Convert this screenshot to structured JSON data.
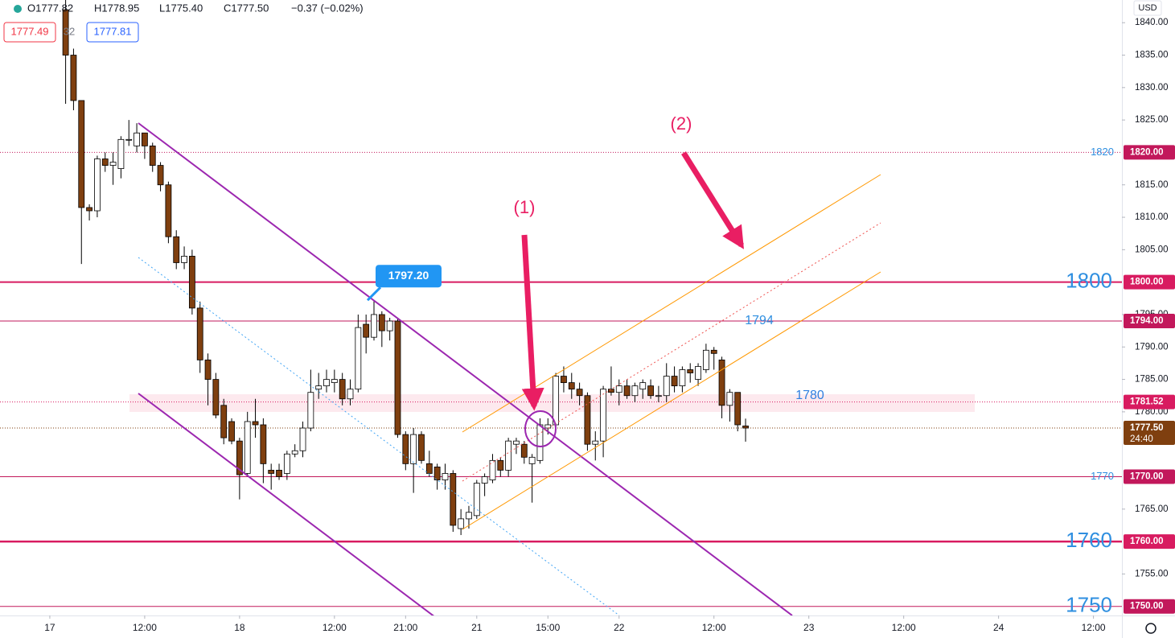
{
  "chart_data": {
    "type": "candlestick",
    "header": [
      "O1777.82",
      "H1778.95",
      "L1775.40",
      "C1777.50",
      "−0.37 (−0.02%)"
    ],
    "header_boxes": [
      "1777.49",
      "32",
      "1777.81"
    ],
    "currency": "USD",
    "xlim": [
      -6.3,
      135.6
    ],
    "ylim": [
      1748.6,
      1843.5
    ],
    "grid": false,
    "up_color": "#ffffff",
    "down_color": "#7f3f0f",
    "wick_color": "#000000",
    "xticks": [
      {
        "value": 0,
        "label": "17"
      },
      {
        "value": 12,
        "label": "12:00"
      },
      {
        "value": 24,
        "label": "18"
      },
      {
        "value": 36,
        "label": "12:00"
      },
      {
        "value": 45,
        "label": "21:00"
      },
      {
        "value": 54,
        "label": "21"
      },
      {
        "value": 63,
        "label": "15:00"
      },
      {
        "value": 72,
        "label": "22"
      },
      {
        "value": 84,
        "label": "12:00"
      },
      {
        "value": 96,
        "label": "23"
      },
      {
        "value": 108,
        "label": "12:00"
      },
      {
        "value": 120,
        "label": "24"
      },
      {
        "value": 132,
        "label": "12:00"
      }
    ],
    "yticks": [
      {
        "value": 1840,
        "label": "1840.00"
      },
      {
        "value": 1835,
        "label": "1835.00"
      },
      {
        "value": 1830,
        "label": "1830.00"
      },
      {
        "value": 1825,
        "label": "1825.00"
      },
      {
        "value": 1815,
        "label": "1815.00"
      },
      {
        "value": 1810,
        "label": "1810.00"
      },
      {
        "value": 1805,
        "label": "1805.00"
      },
      {
        "value": 1795,
        "label": "1795.00"
      },
      {
        "value": 1790,
        "label": "1790.00"
      },
      {
        "value": 1785,
        "label": "1785.00"
      },
      {
        "value": 1780,
        "label": "1780.00"
      },
      {
        "value": 1765,
        "label": "1765.00"
      },
      {
        "value": 1755,
        "label": "1755.00"
      }
    ],
    "x": [
      2,
      3,
      4,
      5,
      6,
      7,
      8,
      9,
      10,
      11,
      12,
      13,
      14,
      15,
      16,
      17,
      18,
      19,
      20,
      21,
      22,
      23,
      24,
      25,
      26,
      27,
      28,
      29,
      30,
      31,
      32,
      33,
      34,
      35,
      36,
      37,
      38,
      39,
      40,
      41,
      42,
      43,
      44,
      45,
      46,
      47,
      48,
      49,
      50,
      51,
      52,
      53,
      54,
      55,
      56,
      57,
      58,
      59,
      60,
      61,
      62,
      63,
      64,
      65,
      66,
      67,
      68,
      69,
      70,
      71,
      72,
      73,
      74,
      75,
      76,
      77,
      78,
      79,
      80,
      81,
      82,
      83,
      84,
      85,
      86,
      87,
      88
    ],
    "open": [
      1842,
      1835,
      1828,
      1811.5,
      1811,
      1819,
      1818,
      1817.5,
      1822,
      1821,
      1823,
      1821,
      1818,
      1815,
      1807,
      1803,
      1804,
      1796,
      1788,
      1785,
      1781,
      1778.5,
      1775.5,
      1770.5,
      1778.5,
      1778,
      1771,
      1771,
      1770.5,
      1773.5,
      1774,
      1777.5,
      1783.5,
      1784,
      1784.5,
      1785,
      1782,
      1783.5,
      1793.5,
      1791.5,
      1795,
      1792.5,
      1794,
      1776.5,
      1772,
      1776.5,
      1772,
      1771.5,
      1769.5,
      1770.5,
      1762,
      1763.5,
      1764,
      1769,
      1769.5,
      1772.5,
      1771,
      1775,
      1775,
      1772,
      1772.5,
      1777.5,
      1778,
      1785.5,
      1784.5,
      1783.5,
      1782.5,
      1775,
      1775.5,
      1783.5,
      1783,
      1784,
      1782.5,
      1783.5,
      1784,
      1782.5,
      1782.5,
      1785.5,
      1784,
      1786.5,
      1785,
      1786.5,
      1789.5,
      1788,
      1781,
      1783,
      1777.82
    ],
    "high": [
      1846,
      1836,
      1828,
      1812,
      1819.5,
      1820,
      1820,
      1822.5,
      1825,
      1824.5,
      1823,
      1821.5,
      1818.5,
      1815.5,
      1808,
      1805.5,
      1805,
      1797,
      1789,
      1786,
      1782,
      1779,
      1776,
      1780,
      1782,
      1779,
      1772,
      1772,
      1774,
      1775,
      1778.5,
      1786.5,
      1786,
      1786.5,
      1786.5,
      1786,
      1785,
      1795,
      1795,
      1797.2,
      1795.5,
      1794.5,
      1794.5,
      1777,
      1777.5,
      1777,
      1774,
      1772,
      1772,
      1771,
      1765,
      1765.5,
      1769.5,
      1770.5,
      1773.5,
      1773,
      1776,
      1776,
      1775.5,
      1773.5,
      1779,
      1779,
      1786,
      1787,
      1786,
      1784.5,
      1783,
      1777,
      1784,
      1787,
      1785,
      1785,
      1784.5,
      1785,
      1785,
      1784,
      1787.5,
      1787,
      1787,
      1787.5,
      1787.5,
      1790.5,
      1790,
      1788.5,
      1783.5,
      1783,
      1778.95
    ],
    "low": [
      1827.5,
      1826.5,
      1802.8,
      1809.5,
      1810,
      1817,
      1815,
      1816,
      1821,
      1820,
      1819,
      1817,
      1814,
      1806,
      1802,
      1802,
      1795,
      1786,
      1781,
      1779,
      1775,
      1775,
      1766.5,
      1770,
      1776,
      1769,
      1768,
      1769.5,
      1769.5,
      1773,
      1773,
      1777,
      1782,
      1783,
      1783,
      1781,
      1781,
      1783,
      1789,
      1791,
      1790,
      1791,
      1776,
      1771,
      1767.5,
      1772,
      1770,
      1768,
      1768,
      1761.5,
      1761,
      1762,
      1763.5,
      1767,
      1769,
      1770,
      1770,
      1773.5,
      1772,
      1766,
      1772,
      1776.5,
      1777.5,
      1783,
      1782,
      1781,
      1774,
      1772.5,
      1773,
      1782.5,
      1781,
      1782,
      1781.5,
      1782,
      1782,
      1781.5,
      1781.5,
      1783,
      1783,
      1784.5,
      1784,
      1786,
      1786.5,
      1779,
      1778.5,
      1777,
      1775.4
    ],
    "close": [
      1835,
      1828,
      1811.5,
      1811,
      1819,
      1818,
      1818.5,
      1822,
      1822,
      1823,
      1821,
      1818,
      1815,
      1807,
      1803,
      1804,
      1796,
      1788,
      1785,
      1779.5,
      1776,
      1775.5,
      1770.3,
      1778.5,
      1778,
      1772,
      1770.5,
      1770,
      1773.5,
      1774,
      1777.5,
      1783,
      1784,
      1785,
      1785,
      1782,
      1783.5,
      1793,
      1791.5,
      1795,
      1792.5,
      1794,
      1776.5,
      1772,
      1776.5,
      1772.5,
      1770.5,
      1769.5,
      1770.5,
      1762.5,
      1763.5,
      1764.5,
      1769,
      1770,
      1772.5,
      1771,
      1775.5,
      1775.5,
      1773,
      1773,
      1778,
      1778,
      1785.5,
      1784.5,
      1783.5,
      1782.5,
      1775,
      1775.5,
      1783.5,
      1783,
      1784,
      1782.5,
      1784,
      1784.5,
      1782.5,
      1782.5,
      1785.5,
      1784,
      1786.5,
      1786,
      1787,
      1789.5,
      1789,
      1781,
      1783,
      1778,
      1777.5
    ],
    "levels": [
      {
        "value": 1820,
        "label": "1820.00",
        "text": "1820",
        "text_size": "small",
        "color": "#c2185b",
        "width": 1,
        "dotted": true
      },
      {
        "value": 1800,
        "label": "1800.00",
        "text": "1800",
        "text_size": "large",
        "color": "#d81b60",
        "width": 2,
        "dotted": false
      },
      {
        "value": 1794,
        "label": "1794.00",
        "text": "1794",
        "text_size": "medium",
        "color": "#c2185b",
        "width": 1,
        "dotted": false
      },
      {
        "value": 1781.52,
        "label": "1781.52",
        "color": "#d81b60",
        "width": 1,
        "dotted": true
      },
      {
        "value": 1777.5,
        "label": "1777.50",
        "countdown": "24:40",
        "color": "#7f3f0f",
        "width": 1,
        "dotted": true
      },
      {
        "value": 1770,
        "label": "1770.00",
        "text": "1770",
        "text_size": "small",
        "color": "#c2185b",
        "width": 1,
        "dotted": false
      },
      {
        "value": 1760,
        "label": "1760.00",
        "text": "1760",
        "text_size": "large",
        "color": "#d81b60",
        "width": 2.5,
        "dotted": false
      },
      {
        "value": 1750,
        "label": "1750.00",
        "text": "1750",
        "text_size": "large",
        "color": "#c2185b",
        "width": 1,
        "dotted": false
      }
    ],
    "zone_text": "1780",
    "annotations": [
      "(1)",
      "(2)"
    ],
    "callout": {
      "value": 1797.2,
      "label": "1797.20"
    }
  }
}
